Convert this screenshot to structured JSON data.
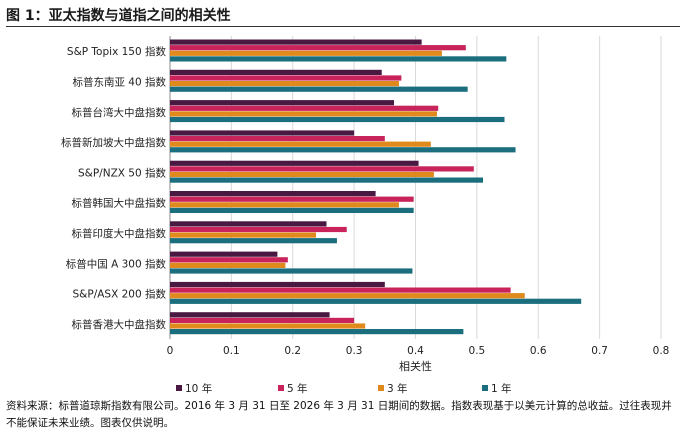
{
  "title": "图 1：亚太指数与道指之间的相关性",
  "footnote": "资料来源：标普道琼斯指数有限公司。2016 年 3 月 31 日至 2026 年 3 月 31 日期间的数据。指数表现基于以美元计算的总收益。过往表现并不能保证未来业绩。图表仅供说明。",
  "chart_data": {
    "type": "bar",
    "orientation": "horizontal",
    "xlabel": "相关性",
    "xlim": [
      0,
      0.8
    ],
    "xticks": [
      "0",
      "0.1",
      "0.2",
      "0.3",
      "0.4",
      "0.5",
      "0.6",
      "0.7",
      "0.8"
    ],
    "grid": true,
    "legend_position": "bottom",
    "categories": [
      "S&P Topix 150 指数",
      "标普东南亚 40 指数",
      "标普台湾大中盘指数",
      "标普新加坡大中盘指数",
      "S&P/NZX 50 指数",
      "标普韩国大中盘指数",
      "标普印度大中盘指数",
      "标普中国 A 300 指数",
      "S&P/ASX 200 指数",
      "标普香港大中盘指数"
    ],
    "series": [
      {
        "name": "10 年",
        "color": "#4a1942",
        "values": [
          0.41,
          0.345,
          0.365,
          0.3,
          0.405,
          0.335,
          0.255,
          0.175,
          0.35,
          0.26
        ]
      },
      {
        "name": "5 年",
        "color": "#c8235a",
        "values": [
          0.482,
          0.377,
          0.437,
          0.35,
          0.495,
          0.397,
          0.288,
          0.192,
          0.555,
          0.3
        ]
      },
      {
        "name": "3 年",
        "color": "#e08a1e",
        "values": [
          0.443,
          0.373,
          0.435,
          0.425,
          0.43,
          0.373,
          0.238,
          0.188,
          0.578,
          0.318
        ]
      },
      {
        "name": "1 年",
        "color": "#1b6e7e",
        "values": [
          0.548,
          0.485,
          0.545,
          0.563,
          0.51,
          0.397,
          0.272,
          0.395,
          0.67,
          0.478
        ]
      }
    ]
  }
}
